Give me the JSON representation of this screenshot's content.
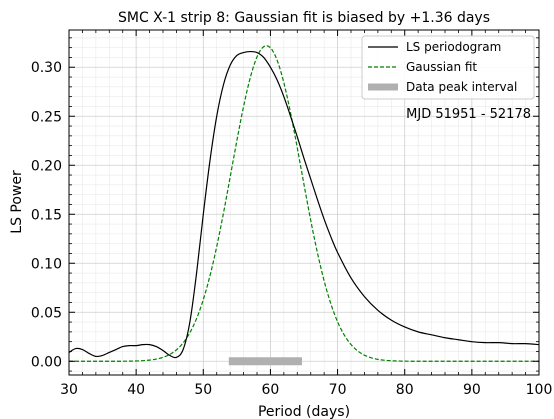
{
  "chart_data": {
    "type": "line",
    "title": "SMC X-1 strip 8: Gaussian fit is biased by +1.36 days",
    "xlabel": "Period (days)",
    "ylabel": "LS Power",
    "xlim": [
      30,
      100
    ],
    "ylim": [
      -0.014,
      0.338
    ],
    "xticks": [
      30,
      40,
      50,
      60,
      70,
      80,
      90,
      100
    ],
    "xtick_labels": [
      "30",
      "40",
      "50",
      "60",
      "70",
      "80",
      "90",
      "100"
    ],
    "yticks": [
      0.0,
      0.05,
      0.1,
      0.15,
      0.2,
      0.25,
      0.3
    ],
    "ytick_labels": [
      "0.00",
      "0.05",
      "0.10",
      "0.15",
      "0.20",
      "0.25",
      "0.30"
    ],
    "grid": true,
    "legend_position": "top-right",
    "annotation": "MJD 51951 - 52178",
    "series": [
      {
        "name": "LS periodogram",
        "style": "solid",
        "color": "#000000",
        "x": [
          30,
          31,
          32,
          33,
          34,
          35,
          36,
          37,
          38,
          39,
          40,
          41,
          42,
          43,
          44,
          45,
          46,
          47,
          48,
          49,
          50,
          51,
          52,
          53,
          54,
          55,
          56,
          57,
          58,
          59,
          60,
          61,
          62,
          63,
          64,
          65,
          66,
          67,
          68,
          69,
          70,
          72,
          74,
          76,
          78,
          80,
          82,
          84,
          86,
          88,
          90,
          92,
          94,
          96,
          98,
          100
        ],
        "y": [
          0.009,
          0.013,
          0.012,
          0.008,
          0.005,
          0.006,
          0.009,
          0.012,
          0.015,
          0.016,
          0.016,
          0.017,
          0.017,
          0.015,
          0.011,
          0.006,
          0.004,
          0.012,
          0.04,
          0.09,
          0.15,
          0.205,
          0.25,
          0.282,
          0.302,
          0.312,
          0.315,
          0.316,
          0.315,
          0.31,
          0.3,
          0.287,
          0.27,
          0.25,
          0.229,
          0.207,
          0.186,
          0.165,
          0.145,
          0.127,
          0.111,
          0.085,
          0.066,
          0.052,
          0.042,
          0.035,
          0.03,
          0.027,
          0.024,
          0.022,
          0.02,
          0.019,
          0.019,
          0.018,
          0.018,
          0.017
        ]
      },
      {
        "name": "Gaussian fit",
        "style": "dashed",
        "color": "#008000",
        "mu": 59.4,
        "sigma": 5.2,
        "amplitude": 0.322
      }
    ],
    "data_peak_interval": {
      "name": "Data peak interval",
      "x": [
        53.8,
        64.7
      ],
      "y": 0.0,
      "color": "#b0b0b0"
    }
  }
}
